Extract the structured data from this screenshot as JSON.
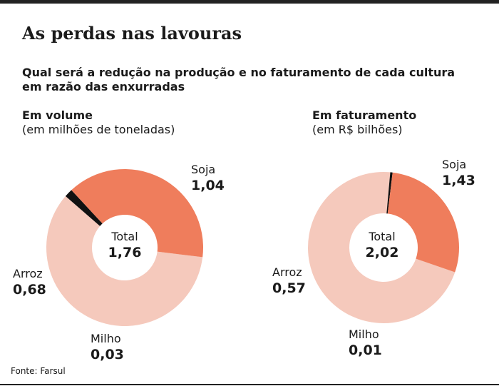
{
  "title": "As perdas nas lavouras",
  "subtitle": "Qual será a redução na produção e no faturamento de cada cultura em razão das enxurradas",
  "source": "Fonte: Farsul",
  "colors": {
    "soja": "#f5c9bc",
    "arroz": "#ef7d5c",
    "milho": "#111111"
  },
  "chart_data": [
    {
      "type": "pie",
      "title": "Em volume",
      "unit": "(em milhões de toneladas)",
      "total_label": "Total",
      "total_value": "1,76",
      "series": [
        {
          "name": "Soja",
          "value": 1.04,
          "label": "1,04"
        },
        {
          "name": "Milho",
          "value": 0.03,
          "label": "0,03"
        },
        {
          "name": "Arroz",
          "value": 0.68,
          "label": "0,68"
        }
      ]
    },
    {
      "type": "pie",
      "title": "Em faturamento",
      "unit": "(em R$ bilhões)",
      "total_label": "Total",
      "total_value": "2,02",
      "series": [
        {
          "name": "Soja",
          "value": 1.43,
          "label": "1,43"
        },
        {
          "name": "Milho",
          "value": 0.01,
          "label": "0,01"
        },
        {
          "name": "Arroz",
          "value": 0.57,
          "label": "0,57"
        }
      ]
    }
  ]
}
